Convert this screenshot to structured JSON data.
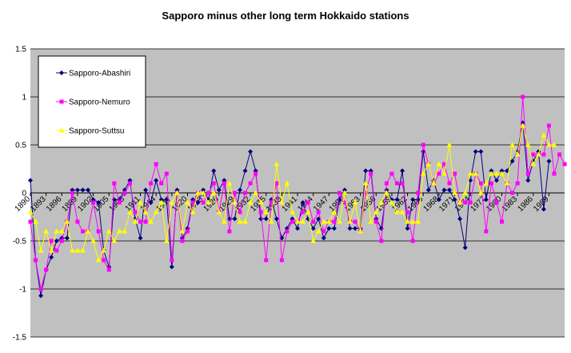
{
  "chart_data": {
    "type": "line",
    "title": "Sapporo minus other long term Hokkaido stations",
    "xlabel": "",
    "ylabel": "",
    "ylim": [
      -1.5,
      1.5
    ],
    "yticks": [
      1.5,
      1,
      0.5,
      0,
      -0.5,
      -1,
      -1.5
    ],
    "ytick_labels": [
      "1.5",
      "1",
      "0.5",
      "0",
      "-0.5",
      "-1",
      "-1.5"
    ],
    "xlim": [
      1890,
      1992
    ],
    "xtick_labels": [
      "1890",
      "1893",
      "1896",
      "1899",
      "1902",
      "1905",
      "1908",
      "1911",
      "1914",
      "1917",
      "1920",
      "1923",
      "1926",
      "1929",
      "1932",
      "1935",
      "1938",
      "1941",
      "1944",
      "1947",
      "1950",
      "1953",
      "1956",
      "1959",
      "1962",
      "1965",
      "1968",
      "1971",
      "1974",
      "1977",
      "1980",
      "1983",
      "1986",
      "1989"
    ],
    "grid": {
      "horizontal": true,
      "vertical": false
    },
    "background": "#c0c0c0",
    "legend_position": "top-left",
    "series": [
      {
        "name": "Sapporo-Abashiri",
        "color": "#000080",
        "marker": "diamond",
        "points": [
          [
            1890,
            0.13
          ],
          [
            1891,
            -0.7
          ],
          [
            1892,
            -1.07
          ],
          [
            1893,
            -0.8
          ],
          [
            1894,
            -0.67
          ],
          [
            1895,
            -0.5
          ],
          [
            1896,
            -0.47
          ],
          [
            1897,
            -0.47
          ],
          [
            1898,
            0.03
          ],
          [
            1899,
            0.03
          ],
          [
            1900,
            0.03
          ],
          [
            1901,
            0.03
          ],
          [
            1902,
            -0.07
          ],
          [
            1903,
            -0.1
          ],
          [
            1904,
            -0.6
          ],
          [
            1905,
            -0.77
          ],
          [
            1906,
            -0.07
          ],
          [
            1907,
            -0.07
          ],
          [
            1908,
            0.03
          ],
          [
            1909,
            0.13
          ],
          [
            1910,
            -0.27
          ],
          [
            1911,
            -0.47
          ],
          [
            1912,
            0.03
          ],
          [
            1913,
            -0.1
          ],
          [
            1914,
            0.13
          ],
          [
            1915,
            -0.07
          ],
          [
            1916,
            -0.07
          ],
          [
            1917,
            -0.77
          ],
          [
            1918,
            0.03
          ],
          [
            1919,
            -0.47
          ],
          [
            1920,
            -0.37
          ],
          [
            1921,
            -0.07
          ],
          [
            1922,
            -0.1
          ],
          [
            1923,
            0.03
          ],
          [
            1924,
            -0.07
          ],
          [
            1925,
            0.23
          ],
          [
            1926,
            0.03
          ],
          [
            1927,
            0.13
          ],
          [
            1928,
            -0.27
          ],
          [
            1929,
            -0.27
          ],
          [
            1930,
            0.03
          ],
          [
            1931,
            0.23
          ],
          [
            1932,
            0.43
          ],
          [
            1933,
            0.23
          ],
          [
            1934,
            -0.27
          ],
          [
            1935,
            -0.27
          ],
          [
            1936,
            -0.07
          ],
          [
            1937,
            -0.27
          ],
          [
            1938,
            -0.47
          ],
          [
            1939,
            -0.37
          ],
          [
            1940,
            -0.27
          ],
          [
            1941,
            -0.37
          ],
          [
            1942,
            -0.1
          ],
          [
            1943,
            -0.27
          ],
          [
            1944,
            -0.37
          ],
          [
            1945,
            -0.27
          ],
          [
            1946,
            -0.47
          ],
          [
            1947,
            -0.37
          ],
          [
            1948,
            -0.37
          ],
          [
            1949,
            -0.07
          ],
          [
            1950,
            0.03
          ],
          [
            1951,
            -0.37
          ],
          [
            1952,
            -0.37
          ],
          [
            1953,
            -0.37
          ],
          [
            1954,
            0.23
          ],
          [
            1955,
            0.23
          ],
          [
            1956,
            -0.27
          ],
          [
            1957,
            -0.37
          ],
          [
            1958,
            0.03
          ],
          [
            1959,
            -0.07
          ],
          [
            1960,
            -0.07
          ],
          [
            1961,
            0.23
          ],
          [
            1962,
            -0.37
          ],
          [
            1963,
            -0.07
          ],
          [
            1964,
            -0.07
          ],
          [
            1965,
            0.43
          ],
          [
            1966,
            0.03
          ],
          [
            1967,
            0.13
          ],
          [
            1968,
            -0.07
          ],
          [
            1969,
            0.03
          ],
          [
            1970,
            0.03
          ],
          [
            1971,
            -0.07
          ],
          [
            1972,
            -0.27
          ],
          [
            1973,
            -0.57
          ],
          [
            1974,
            0.13
          ],
          [
            1975,
            0.43
          ],
          [
            1976,
            0.43
          ],
          [
            1977,
            -0.07
          ],
          [
            1978,
            0.23
          ],
          [
            1979,
            0.13
          ],
          [
            1980,
            0.23
          ],
          [
            1981,
            0.23
          ],
          [
            1982,
            0.33
          ],
          [
            1983,
            0.43
          ],
          [
            1984,
            0.73
          ],
          [
            1985,
            0.13
          ],
          [
            1986,
            0.33
          ],
          [
            1987,
            0.43
          ],
          [
            1988,
            -0.17
          ],
          [
            1989,
            0.33
          ]
        ]
      },
      {
        "name": "Sapporo-Nemuro",
        "color": "#ff00ff",
        "marker": "square",
        "points": [
          [
            1890,
            -0.3
          ],
          [
            1891,
            -0.7
          ],
          [
            1892,
            -1.0
          ],
          [
            1893,
            -0.8
          ],
          [
            1894,
            -0.5
          ],
          [
            1895,
            -0.6
          ],
          [
            1896,
            -0.5
          ],
          [
            1897,
            -0.3
          ],
          [
            1898,
            0.0
          ],
          [
            1899,
            -0.3
          ],
          [
            1900,
            -0.4
          ],
          [
            1901,
            -0.4
          ],
          [
            1902,
            -0.1
          ],
          [
            1903,
            -0.4
          ],
          [
            1904,
            -0.7
          ],
          [
            1905,
            -0.8
          ],
          [
            1906,
            0.1
          ],
          [
            1907,
            -0.1
          ],
          [
            1908,
            0.0
          ],
          [
            1909,
            0.1
          ],
          [
            1910,
            -0.2
          ],
          [
            1911,
            -0.3
          ],
          [
            1912,
            -0.3
          ],
          [
            1913,
            0.1
          ],
          [
            1914,
            0.3
          ],
          [
            1915,
            0.1
          ],
          [
            1916,
            0.2
          ],
          [
            1917,
            -0.7
          ],
          [
            1918,
            0.0
          ],
          [
            1919,
            -0.5
          ],
          [
            1920,
            -0.4
          ],
          [
            1921,
            -0.1
          ],
          [
            1922,
            0.0
          ],
          [
            1923,
            -0.1
          ],
          [
            1924,
            0.0
          ],
          [
            1925,
            0.1
          ],
          [
            1926,
            -0.2
          ],
          [
            1927,
            0.1
          ],
          [
            1928,
            -0.4
          ],
          [
            1929,
            0.0
          ],
          [
            1930,
            -0.2
          ],
          [
            1931,
            0.0
          ],
          [
            1932,
            0.1
          ],
          [
            1933,
            0.2
          ],
          [
            1934,
            -0.2
          ],
          [
            1935,
            -0.7
          ],
          [
            1936,
            -0.1
          ],
          [
            1937,
            0.1
          ],
          [
            1938,
            -0.7
          ],
          [
            1939,
            -0.4
          ],
          [
            1940,
            -0.3
          ],
          [
            1941,
            -0.3
          ],
          [
            1942,
            -0.2
          ],
          [
            1943,
            -0.1
          ],
          [
            1944,
            -0.3
          ],
          [
            1945,
            -0.2
          ],
          [
            1946,
            -0.4
          ],
          [
            1947,
            -0.3
          ],
          [
            1948,
            -0.3
          ],
          [
            1949,
            0.0
          ],
          [
            1950,
            -0.1
          ],
          [
            1951,
            -0.3
          ],
          [
            1952,
            -0.3
          ],
          [
            1953,
            -0.4
          ],
          [
            1954,
            0.0
          ],
          [
            1955,
            0.2
          ],
          [
            1956,
            -0.3
          ],
          [
            1957,
            -0.5
          ],
          [
            1958,
            0.1
          ],
          [
            1959,
            0.2
          ],
          [
            1960,
            0.1
          ],
          [
            1961,
            0.1
          ],
          [
            1962,
            -0.2
          ],
          [
            1963,
            -0.5
          ],
          [
            1964,
            0.0
          ],
          [
            1965,
            0.5
          ],
          [
            1966,
            0.3
          ],
          [
            1967,
            0.1
          ],
          [
            1968,
            0.2
          ],
          [
            1969,
            0.3
          ],
          [
            1970,
            0.1
          ],
          [
            1971,
            0.2
          ],
          [
            1972,
            -0.1
          ],
          [
            1973,
            -0.1
          ],
          [
            1974,
            -0.1
          ],
          [
            1975,
            0.2
          ],
          [
            1976,
            0.1
          ],
          [
            1977,
            -0.4
          ],
          [
            1978,
            0.1
          ],
          [
            1979,
            -0.1
          ],
          [
            1980,
            -0.3
          ],
          [
            1981,
            0.1
          ],
          [
            1982,
            0.0
          ],
          [
            1983,
            0.1
          ],
          [
            1984,
            1.0
          ],
          [
            1985,
            0.2
          ],
          [
            1986,
            0.4
          ],
          [
            1987,
            0.4
          ],
          [
            1988,
            0.4
          ],
          [
            1989,
            0.7
          ],
          [
            1990,
            0.2
          ],
          [
            1991,
            0.4
          ],
          [
            1992,
            0.3
          ]
        ]
      },
      {
        "name": "Sapporo-Suttsu",
        "color": "#ffff00",
        "marker": "triangle",
        "points": [
          [
            1890,
            -0.2
          ],
          [
            1891,
            -0.3
          ],
          [
            1892,
            -0.6
          ],
          [
            1893,
            -0.4
          ],
          [
            1894,
            -0.6
          ],
          [
            1895,
            -0.4
          ],
          [
            1896,
            -0.4
          ],
          [
            1897,
            -0.3
          ],
          [
            1898,
            -0.6
          ],
          [
            1899,
            -0.6
          ],
          [
            1900,
            -0.6
          ],
          [
            1901,
            -0.4
          ],
          [
            1902,
            -0.5
          ],
          [
            1903,
            -0.7
          ],
          [
            1904,
            -0.6
          ],
          [
            1905,
            -0.4
          ],
          [
            1906,
            -0.5
          ],
          [
            1907,
            -0.4
          ],
          [
            1908,
            -0.4
          ],
          [
            1909,
            -0.2
          ],
          [
            1910,
            -0.3
          ],
          [
            1911,
            -0.1
          ],
          [
            1912,
            -0.2
          ],
          [
            1913,
            -0.3
          ],
          [
            1914,
            -0.2
          ],
          [
            1915,
            -0.1
          ],
          [
            1916,
            -0.5
          ],
          [
            1917,
            -0.1
          ],
          [
            1918,
            0.0
          ],
          [
            1919,
            -0.4
          ],
          [
            1920,
            -0.1
          ],
          [
            1921,
            -0.2
          ],
          [
            1922,
            0.0
          ],
          [
            1923,
            0.0
          ],
          [
            1924,
            -0.1
          ],
          [
            1925,
            0.0
          ],
          [
            1926,
            -0.2
          ],
          [
            1927,
            -0.3
          ],
          [
            1928,
            0.1
          ],
          [
            1929,
            -0.1
          ],
          [
            1930,
            -0.3
          ],
          [
            1931,
            -0.3
          ],
          [
            1932,
            -0.1
          ],
          [
            1933,
            0.0
          ],
          [
            1934,
            -0.1
          ],
          [
            1935,
            -0.2
          ],
          [
            1936,
            -0.3
          ],
          [
            1937,
            0.3
          ],
          [
            1938,
            -0.1
          ],
          [
            1939,
            0.1
          ],
          [
            1940,
            -0.2
          ],
          [
            1941,
            -0.3
          ],
          [
            1942,
            -0.3
          ],
          [
            1943,
            -0.2
          ],
          [
            1944,
            -0.5
          ],
          [
            1945,
            -0.4
          ],
          [
            1946,
            -0.3
          ],
          [
            1947,
            -0.3
          ],
          [
            1948,
            -0.2
          ],
          [
            1949,
            -0.3
          ],
          [
            1950,
            0.0
          ],
          [
            1951,
            -0.3
          ],
          [
            1952,
            -0.1
          ],
          [
            1953,
            -0.4
          ],
          [
            1954,
            0.1
          ],
          [
            1955,
            -0.3
          ],
          [
            1956,
            -0.2
          ],
          [
            1957,
            -0.1
          ],
          [
            1958,
            0.0
          ],
          [
            1959,
            -0.1
          ],
          [
            1960,
            -0.2
          ],
          [
            1961,
            -0.2
          ],
          [
            1962,
            -0.3
          ],
          [
            1963,
            -0.3
          ],
          [
            1964,
            -0.3
          ],
          [
            1965,
            0.2
          ],
          [
            1966,
            0.3
          ],
          [
            1967,
            0.1
          ],
          [
            1968,
            0.3
          ],
          [
            1969,
            0.2
          ],
          [
            1970,
            0.5
          ],
          [
            1971,
            0.0
          ],
          [
            1972,
            -0.1
          ],
          [
            1973,
            0.0
          ],
          [
            1974,
            0.2
          ],
          [
            1975,
            0.2
          ],
          [
            1976,
            0.0
          ],
          [
            1977,
            0.1
          ],
          [
            1978,
            0.2
          ],
          [
            1979,
            0.2
          ],
          [
            1980,
            0.2
          ],
          [
            1981,
            0.1
          ],
          [
            1982,
            0.5
          ],
          [
            1983,
            0.4
          ],
          [
            1984,
            0.7
          ],
          [
            1985,
            0.5
          ],
          [
            1986,
            0.3
          ],
          [
            1987,
            0.4
          ],
          [
            1988,
            0.6
          ],
          [
            1989,
            0.5
          ],
          [
            1990,
            0.5
          ]
        ]
      }
    ]
  }
}
